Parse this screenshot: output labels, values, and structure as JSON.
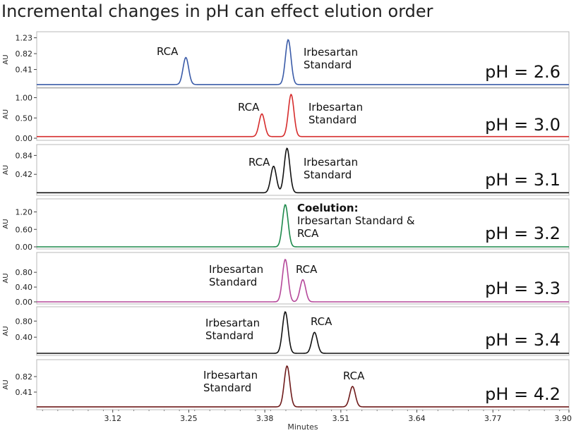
{
  "title": "Incremental changes in pH can effect elution order",
  "chart_data": {
    "type": "line",
    "title": "Incremental changes in pH can effect elution order",
    "xlabel": "Minutes",
    "xlim": [
      2.99,
      3.9
    ],
    "xticks": [
      "3.12",
      "3.25",
      "3.38",
      "3.51",
      "3.64",
      "3.77",
      "3.90"
    ],
    "ylabel": "AU",
    "grid": false,
    "panels": [
      {
        "ph_label": "pH = 2.6",
        "color": "#3a5ba8",
        "ylim": [
          0,
          1.35
        ],
        "yticks": [
          "1.23",
          "0.82",
          "0.41"
        ],
        "baseline": 0.02,
        "peaks": [
          {
            "name": "RCA",
            "rt": 3.245,
            "height": 0.72
          },
          {
            "name": "Irbesartan Standard",
            "rt": 3.42,
            "height": 1.18
          }
        ],
        "labels": [
          {
            "key": "rca",
            "lines": [
              "RCA"
            ]
          },
          {
            "key": "irb",
            "lines": [
              "Irbesartan",
              "Standard"
            ]
          }
        ]
      },
      {
        "ph_label": "pH = 3.0",
        "color": "#d62c2c",
        "ylim": [
          0,
          1.2
        ],
        "yticks": [
          "1.00",
          "0.50",
          "0.00"
        ],
        "baseline": 0.04,
        "peaks": [
          {
            "name": "RCA",
            "rt": 3.375,
            "height": 0.6
          },
          {
            "name": "Irbesartan Standard",
            "rt": 3.425,
            "height": 1.08
          }
        ],
        "labels": [
          {
            "key": "rca",
            "lines": [
              "RCA"
            ]
          },
          {
            "key": "irb",
            "lines": [
              "Irbesartan",
              "Standard"
            ]
          }
        ]
      },
      {
        "ph_label": "pH = 3.1",
        "color": "#111111",
        "ylim": [
          0,
          1.05
        ],
        "yticks": [
          "0.84",
          "0.42"
        ],
        "baseline": 0.01,
        "peaks": [
          {
            "name": "RCA",
            "rt": 3.395,
            "height": 0.6
          },
          {
            "name": "Irbesartan Standard",
            "rt": 3.418,
            "height": 1.0
          }
        ],
        "labels": [
          {
            "key": "rca",
            "lines": [
              "RCA"
            ]
          },
          {
            "key": "irb",
            "lines": [
              "Irbesartan",
              "Standard"
            ]
          }
        ]
      },
      {
        "ph_label": "pH = 3.2",
        "color": "#1e8a4c",
        "ylim": [
          0,
          1.6
        ],
        "yticks": [
          "1.20",
          "0.60",
          "0.00"
        ],
        "baseline": 0.0,
        "peaks": [
          {
            "name": "Irbesartan Standard & RCA",
            "rt": 3.415,
            "height": 1.45
          }
        ],
        "labels": [
          {
            "key": "coel",
            "bold": "Coelution:",
            "lines": [
              "Irbesartan Standard &",
              "RCA"
            ]
          }
        ]
      },
      {
        "ph_label": "pH = 3.3",
        "color": "#b5489a",
        "ylim": [
          0,
          1.3
        ],
        "yticks": [
          "0.80",
          "0.40",
          "0.00"
        ],
        "baseline": 0.0,
        "peaks": [
          {
            "name": "Irbesartan Standard",
            "rt": 3.415,
            "height": 1.15
          },
          {
            "name": "RCA",
            "rt": 3.445,
            "height": 0.6
          }
        ],
        "labels": [
          {
            "key": "irb",
            "lines": [
              "Irbesartan",
              "Standard"
            ]
          },
          {
            "key": "rca",
            "lines": [
              "RCA"
            ]
          }
        ]
      },
      {
        "ph_label": "pH = 3.4",
        "color": "#111111",
        "ylim": [
          0,
          1.12
        ],
        "yticks": [
          "0.80",
          "0.40"
        ],
        "baseline": 0.0,
        "peaks": [
          {
            "name": "Irbesartan Standard",
            "rt": 3.415,
            "height": 1.03
          },
          {
            "name": "RCA",
            "rt": 3.465,
            "height": 0.52
          }
        ],
        "labels": [
          {
            "key": "irb",
            "lines": [
              "Irbesartan",
              "Standard"
            ]
          },
          {
            "key": "rca",
            "lines": [
              "RCA"
            ]
          }
        ]
      },
      {
        "ph_label": "pH = 4.2",
        "color": "#6e1a1a",
        "ylim": [
          0,
          1.23
        ],
        "yticks": [
          "0.82",
          "0.41"
        ],
        "baseline": 0.02,
        "peaks": [
          {
            "name": "Irbesartan Standard",
            "rt": 3.418,
            "height": 1.1
          },
          {
            "name": "RCA",
            "rt": 3.53,
            "height": 0.56
          }
        ],
        "labels": [
          {
            "key": "irb",
            "lines": [
              "Irbesartan",
              "Standard"
            ]
          },
          {
            "key": "rca",
            "lines": [
              "RCA"
            ]
          }
        ]
      }
    ]
  }
}
